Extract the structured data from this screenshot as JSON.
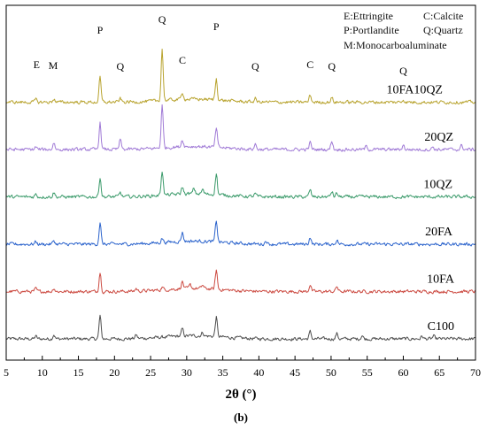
{
  "chart_data": {
    "type": "line",
    "xlabel": "2θ (°)",
    "ylabel": "",
    "caption": "(b)",
    "xlim": [
      5,
      70
    ],
    "xticks": [
      5,
      10,
      15,
      20,
      25,
      30,
      35,
      40,
      45,
      50,
      55,
      60,
      65,
      70
    ],
    "grid": false,
    "legend": {
      "placement": "top-right",
      "entries": [
        "E:Ettringite",
        "C:Calcite",
        "P:Portlandite",
        "Q:Quartz",
        "M:Monocarboaluminate"
      ]
    },
    "phase_labels": [
      {
        "text": "E",
        "x": 9.2
      },
      {
        "text": "M",
        "x": 11.5
      },
      {
        "text": "P",
        "x": 18.0
      },
      {
        "text": "Q",
        "x": 20.8
      },
      {
        "text": "Q",
        "x": 26.6
      },
      {
        "text": "C",
        "x": 29.4
      },
      {
        "text": "P",
        "x": 34.1
      },
      {
        "text": "Q",
        "x": 39.5
      },
      {
        "text": "C",
        "x": 47.1
      },
      {
        "text": "Q",
        "x": 50.1
      },
      {
        "text": "Q",
        "x": 60.0
      }
    ],
    "series": [
      {
        "name": "C100",
        "color": "#4d4d4d",
        "offset": 0,
        "peaks": [
          [
            9.1,
            3
          ],
          [
            11.6,
            5
          ],
          [
            18.0,
            26
          ],
          [
            23.0,
            4
          ],
          [
            29.4,
            8
          ],
          [
            32.2,
            4
          ],
          [
            34.1,
            22
          ],
          [
            47.1,
            8
          ],
          [
            50.8,
            6
          ],
          [
            54.3,
            4
          ],
          [
            62.6,
            3
          ],
          [
            64.2,
            3
          ]
        ]
      },
      {
        "name": "10FA",
        "color": "#cc4b42",
        "offset": 1,
        "peaks": [
          [
            9.1,
            3
          ],
          [
            11.6,
            4
          ],
          [
            18.0,
            22
          ],
          [
            23.0,
            3
          ],
          [
            26.6,
            3
          ],
          [
            29.4,
            8
          ],
          [
            30.5,
            4
          ],
          [
            32.2,
            4
          ],
          [
            34.1,
            22
          ],
          [
            47.1,
            8
          ],
          [
            50.8,
            6
          ]
        ]
      },
      {
        "name": "20FA",
        "color": "#2b63cc",
        "offset": 2,
        "peaks": [
          [
            9.1,
            3
          ],
          [
            11.6,
            4
          ],
          [
            18.0,
            24
          ],
          [
            26.6,
            5
          ],
          [
            29.4,
            10
          ],
          [
            34.1,
            24
          ],
          [
            41.0,
            4
          ],
          [
            47.1,
            8
          ],
          [
            50.8,
            5
          ]
        ]
      },
      {
        "name": "10QZ",
        "color": "#3a9a6a",
        "offset": 3,
        "peaks": [
          [
            9.1,
            3
          ],
          [
            11.6,
            5
          ],
          [
            18.0,
            22
          ],
          [
            20.8,
            5
          ],
          [
            26.6,
            28
          ],
          [
            29.4,
            8
          ],
          [
            31.0,
            6
          ],
          [
            32.2,
            5
          ],
          [
            34.1,
            24
          ],
          [
            39.5,
            3
          ],
          [
            47.1,
            8
          ],
          [
            50.1,
            6
          ],
          [
            50.8,
            4
          ]
        ]
      },
      {
        "name": "20QZ",
        "color": "#a07ad6",
        "offset": 4,
        "peaks": [
          [
            9.1,
            3
          ],
          [
            11.6,
            8
          ],
          [
            18.0,
            30
          ],
          [
            20.8,
            11
          ],
          [
            26.6,
            48
          ],
          [
            29.4,
            8
          ],
          [
            34.1,
            22
          ],
          [
            39.5,
            6
          ],
          [
            47.1,
            8
          ],
          [
            50.1,
            10
          ],
          [
            54.9,
            4
          ],
          [
            60.0,
            5
          ],
          [
            64.1,
            3
          ],
          [
            68.1,
            5
          ]
        ]
      },
      {
        "name": "10FA10QZ",
        "color": "#b8a32e",
        "offset": 5,
        "peaks": [
          [
            9.1,
            3
          ],
          [
            11.6,
            4
          ],
          [
            18.0,
            28
          ],
          [
            20.8,
            4
          ],
          [
            26.6,
            58
          ],
          [
            29.4,
            8
          ],
          [
            34.1,
            24
          ],
          [
            39.5,
            4
          ],
          [
            47.1,
            8
          ],
          [
            50.1,
            5
          ],
          [
            60.0,
            3
          ]
        ]
      }
    ]
  }
}
